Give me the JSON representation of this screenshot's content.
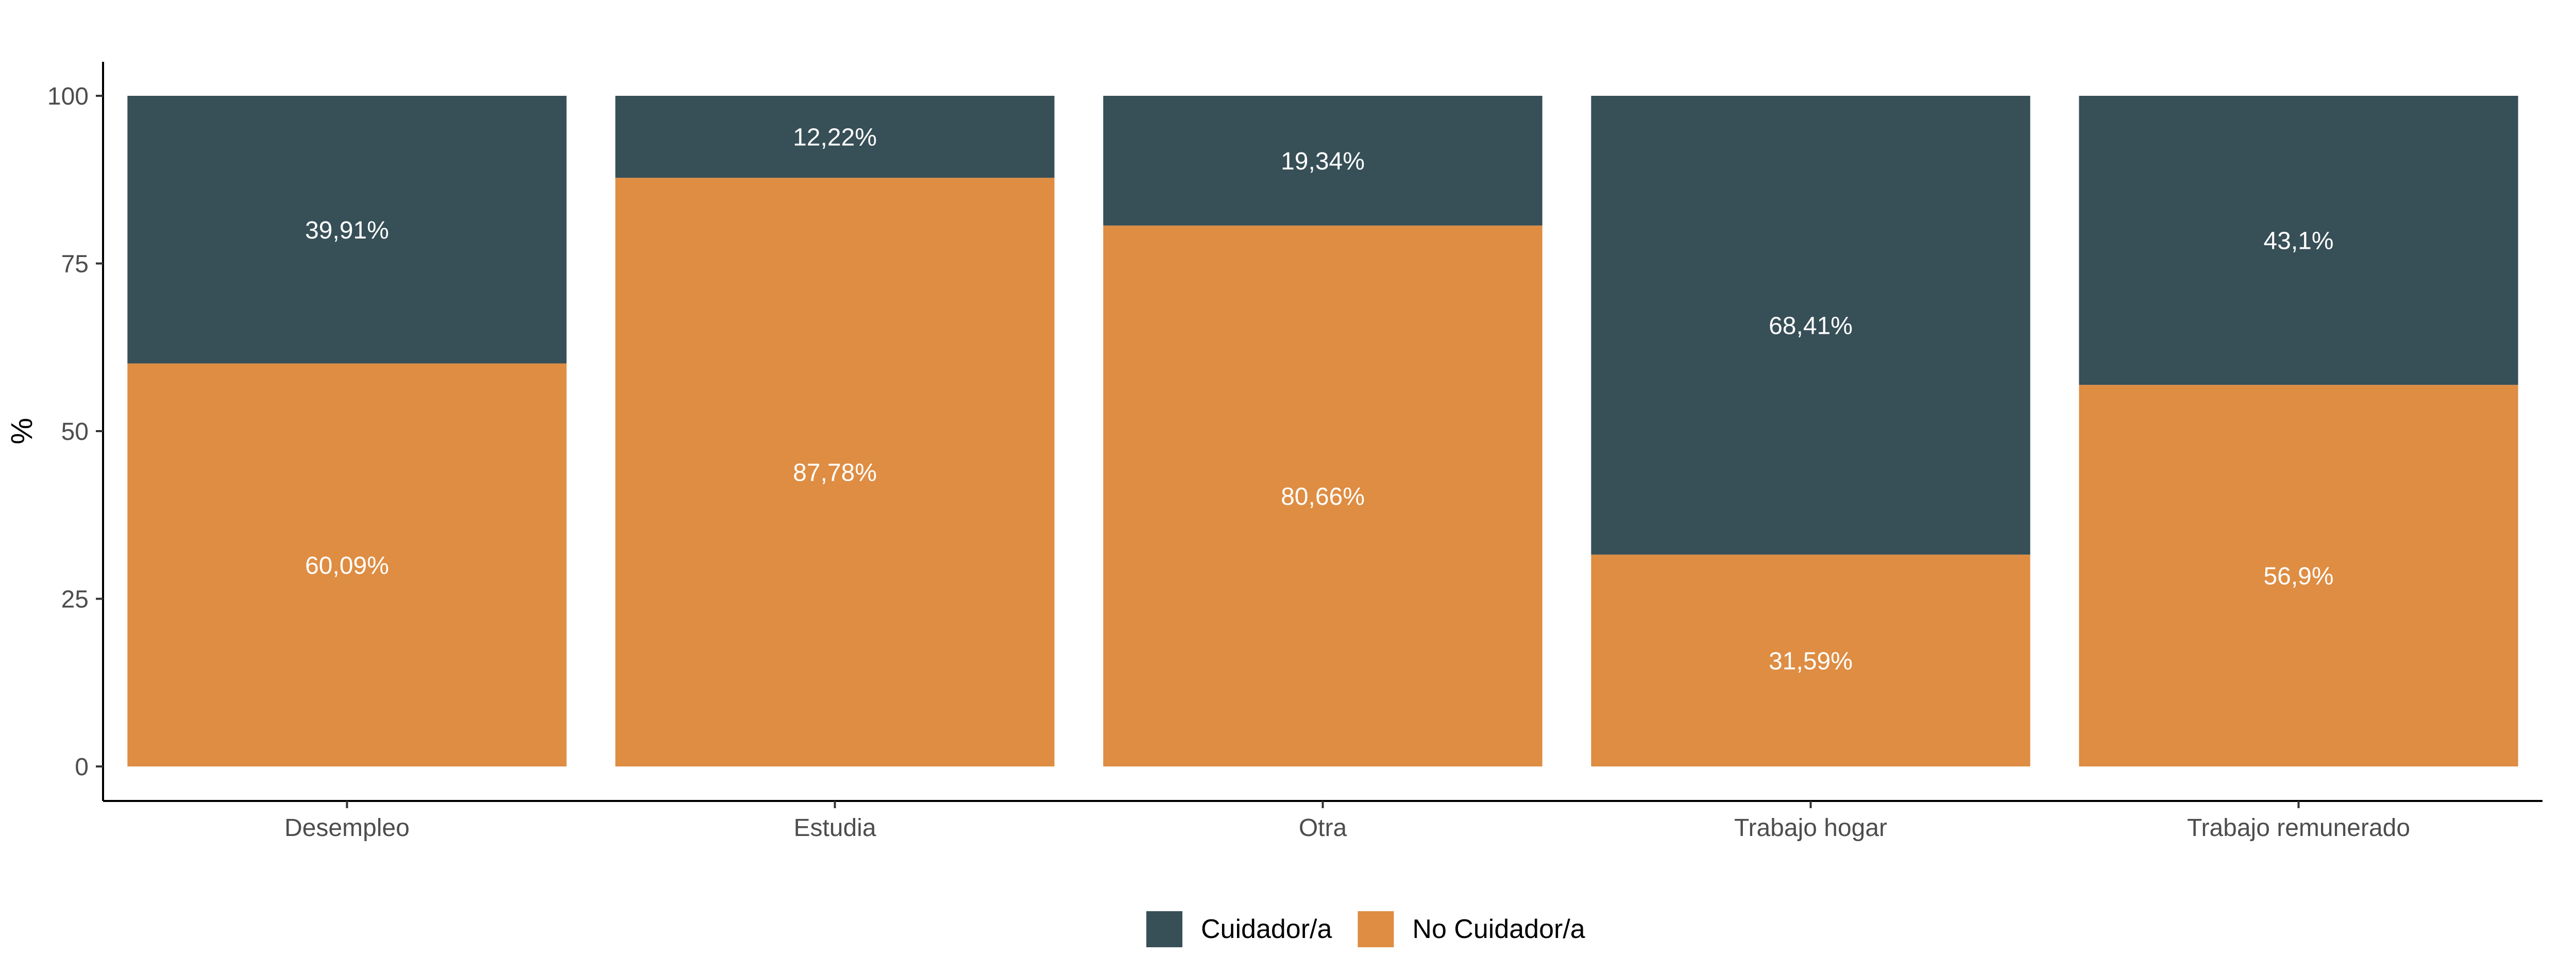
{
  "chart_data": {
    "type": "bar",
    "stacked": true,
    "categories": [
      "Desempleo",
      "Estudia",
      "Otra",
      "Trabajo hogar",
      "Trabajo remunerado"
    ],
    "series": [
      {
        "name": "No Cuidador/a",
        "color": "#DE8D43",
        "values": [
          60.09,
          87.78,
          80.66,
          31.59,
          56.9
        ],
        "labels": [
          "60,09%",
          "87,78%",
          "80,66%",
          "31,59%",
          "56,9%"
        ]
      },
      {
        "name": "Cuidador/a",
        "color": "#374F57",
        "values": [
          39.91,
          12.22,
          19.34,
          68.41,
          43.1
        ],
        "labels": [
          "39,91%",
          "12,22%",
          "19,34%",
          "68,41%",
          "43,1%"
        ]
      }
    ],
    "xlabel": "",
    "ylabel": "%",
    "ylim": [
      0,
      100
    ],
    "yticks": [
      0,
      25,
      50,
      75,
      100
    ],
    "ytick_labels": [
      "0",
      "25",
      "50",
      "75",
      "100"
    ],
    "grid": false,
    "legend": {
      "position": "bottom",
      "items": [
        "Cuidador/a",
        "No Cuidador/a"
      ]
    }
  }
}
